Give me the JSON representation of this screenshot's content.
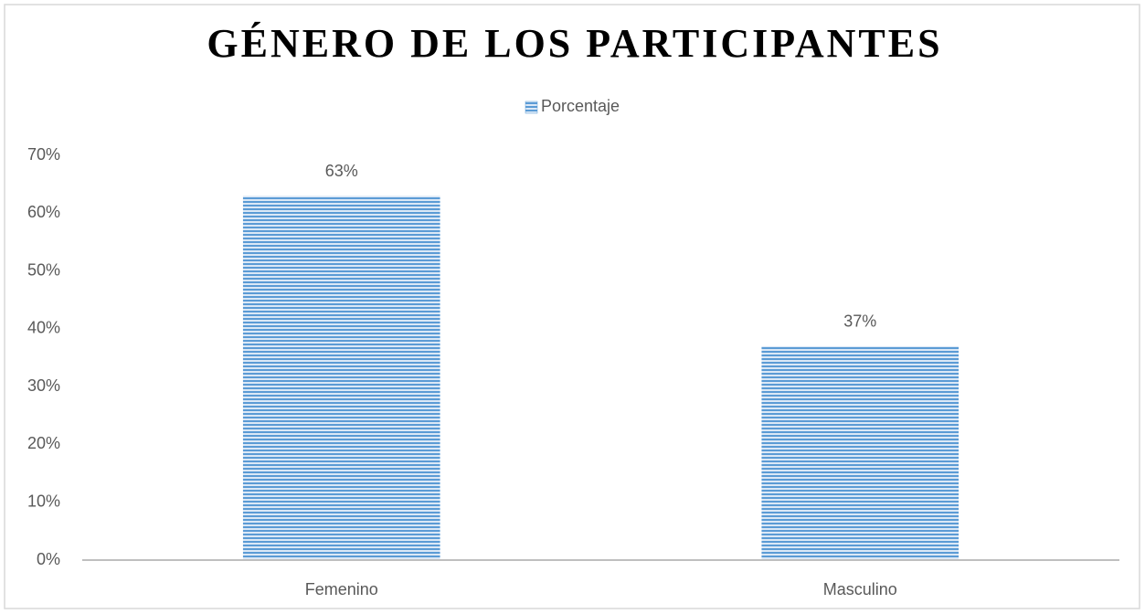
{
  "chart_data": {
    "type": "bar",
    "title": "GÉNERO DE LOS PARTICIPANTES",
    "categories": [
      "Femenino",
      "Masculino"
    ],
    "series": [
      {
        "name": "Porcentaje",
        "color": "#5b9bd5",
        "values": [
          63,
          37
        ],
        "value_labels": [
          "63%",
          "37%"
        ]
      }
    ],
    "ylim": [
      0,
      70
    ],
    "yticks": [
      {
        "value": 0,
        "label": "0%"
      },
      {
        "value": 10,
        "label": "10%"
      },
      {
        "value": 20,
        "label": "20%"
      },
      {
        "value": 30,
        "label": "30%"
      },
      {
        "value": 40,
        "label": "40%"
      },
      {
        "value": 50,
        "label": "50%"
      },
      {
        "value": 60,
        "label": "60%"
      },
      {
        "value": 70,
        "label": "70%"
      }
    ],
    "grid": false,
    "legend": "top"
  }
}
